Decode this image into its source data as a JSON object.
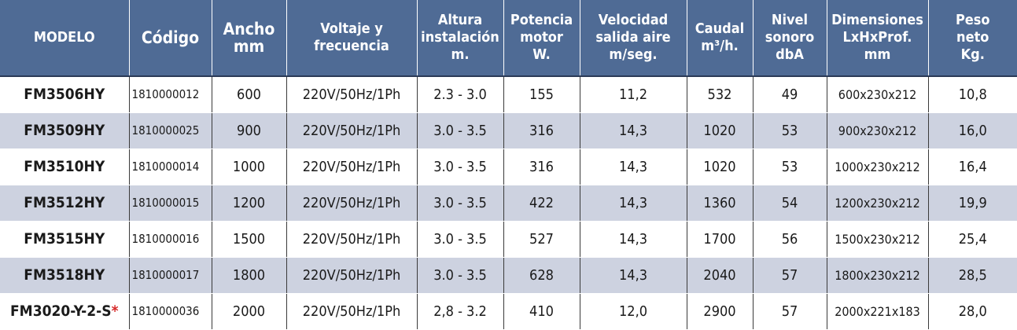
{
  "headers": [
    "MODELO",
    "Código",
    "Ancho\nmm",
    "Voltaje y\nfrecuencia",
    "Altura\ninstalación\nm.",
    "Potencia\nmotor\nW.",
    "Velocidad\nsalida aire\nm/seg.",
    "Caudal\nm³/h.",
    "Nivel\nsonoro\ndbA",
    "Dimensiones\nLxHxProf.\nmm",
    "Peso\nneto\nKg."
  ],
  "rows": [
    {
      "modelo": "FM3506HY",
      "mark": "",
      "codigo": "1810000012",
      "ancho": "600",
      "voltaje": "220V/50Hz/1Ph",
      "altura": "2.3 - 3.0",
      "potencia": "155",
      "velocidad": "11,2",
      "caudal": "532",
      "nivel": "49",
      "dimensiones": "600x230x212",
      "peso": "10,8"
    },
    {
      "modelo": "FM3509HY",
      "mark": "",
      "codigo": "1810000025",
      "ancho": "900",
      "voltaje": "220V/50Hz/1Ph",
      "altura": "3.0 - 3.5",
      "potencia": "316",
      "velocidad": "14,3",
      "caudal": "1020",
      "nivel": "53",
      "dimensiones": "900x230x212",
      "peso": "16,0"
    },
    {
      "modelo": "FM3510HY",
      "mark": "",
      "codigo": "1810000014",
      "ancho": "1000",
      "voltaje": "220V/50Hz/1Ph",
      "altura": "3.0 - 3.5",
      "potencia": "316",
      "velocidad": "14,3",
      "caudal": "1020",
      "nivel": "53",
      "dimensiones": "1000x230x212",
      "peso": "16,4"
    },
    {
      "modelo": "FM3512HY",
      "mark": "",
      "codigo": "1810000015",
      "ancho": "1200",
      "voltaje": "220V/50Hz/1Ph",
      "altura": "3.0 - 3.5",
      "potencia": "422",
      "velocidad": "14,3",
      "caudal": "1360",
      "nivel": "54",
      "dimensiones": "1200x230x212",
      "peso": "19,9"
    },
    {
      "modelo": "FM3515HY",
      "mark": "",
      "codigo": "1810000016",
      "ancho": "1500",
      "voltaje": "220V/50Hz/1Ph",
      "altura": "3.0 - 3.5",
      "potencia": "527",
      "velocidad": "14,3",
      "caudal": "1700",
      "nivel": "56",
      "dimensiones": "1500x230x212",
      "peso": "25,4"
    },
    {
      "modelo": "FM3518HY",
      "mark": "",
      "codigo": "1810000017",
      "ancho": "1800",
      "voltaje": "220V/50Hz/1Ph",
      "altura": "3.0 - 3.5",
      "potencia": "628",
      "velocidad": "14,3",
      "caudal": "2040",
      "nivel": "57",
      "dimensiones": "1800x230x212",
      "peso": "28,5"
    },
    {
      "modelo": "FM3020-Y-2-S",
      "mark": "*",
      "codigo": "1810000036",
      "ancho": "2000",
      "voltaje": "220V/50Hz/1Ph",
      "altura": "2,8 - 3.2",
      "potencia": "410",
      "velocidad": "12,0",
      "caudal": "2900",
      "nivel": "57",
      "dimensiones": "2000x221x183",
      "peso": "28,0"
    }
  ],
  "colors": {
    "header_bg": "#4f6b95",
    "header_text": "#ffffff",
    "row_alt_bg": "#cdd2e0",
    "asterisk": "#d62828"
  }
}
